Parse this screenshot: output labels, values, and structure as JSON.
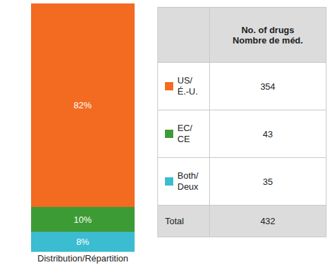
{
  "chart_data": {
    "type": "bar",
    "stacked": true,
    "data_labels": true,
    "tick_labels": "x",
    "categories": [
      "Distribution/Répartition"
    ],
    "ylim": [
      0,
      100
    ],
    "series": [
      {
        "color": "#f26b21",
        "values": [
          82
        ],
        "value_labels": [
          "82%"
        ]
      },
      {
        "color": "#3d9b35",
        "values": [
          10
        ],
        "value_labels": [
          "10%"
        ]
      },
      {
        "color": "#3bbcd0",
        "values": [
          8
        ],
        "value_labels": [
          "8%"
        ]
      }
    ]
  },
  "table": {
    "header": [
      "",
      "No. of drugs\nNombre de méd."
    ],
    "rows": [
      [
        "US/\nÉ.-U.",
        354
      ],
      [
        "EC/\nCE",
        43
      ],
      [
        "Both/\nDeux",
        35
      ]
    ],
    "footer": [
      "Total",
      432
    ]
  }
}
